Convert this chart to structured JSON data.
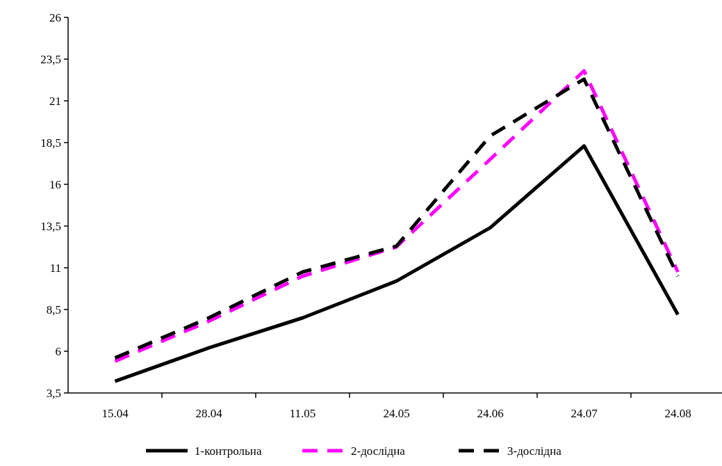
{
  "chart_data": {
    "type": "line",
    "categories": [
      "15.04",
      "28.04",
      "11.05",
      "24.05",
      "24.06",
      "24.07",
      "24.08"
    ],
    "series": [
      {
        "name": "1-контрольна",
        "color": "#000000",
        "line_style": "solid",
        "values": [
          4.2,
          6.2,
          8.0,
          10.2,
          13.4,
          18.3,
          8.2
        ]
      },
      {
        "name": "2-дослідна",
        "color": "#ff00ff",
        "line_style": "dashed",
        "values": [
          5.4,
          7.8,
          10.5,
          12.25,
          17.5,
          22.8,
          10.75
        ]
      },
      {
        "name": "3-дослідна",
        "color": "#000000",
        "line_style": "dashed",
        "values": [
          5.6,
          8.0,
          10.75,
          12.3,
          18.9,
          22.3,
          10.5
        ]
      }
    ],
    "ylim": [
      3.5,
      26
    ],
    "yticks": [
      {
        "value": 3.5,
        "label": "3,5"
      },
      6,
      {
        "value": 8.5,
        "label": "8,5"
      },
      11,
      {
        "value": 13.5,
        "label": "13,5"
      },
      16,
      {
        "value": 18.5,
        "label": "18,5"
      },
      21,
      {
        "value": 23.5,
        "label": "23,5"
      },
      26
    ],
    "grid": false,
    "legend": "bottom",
    "marker": "none"
  }
}
